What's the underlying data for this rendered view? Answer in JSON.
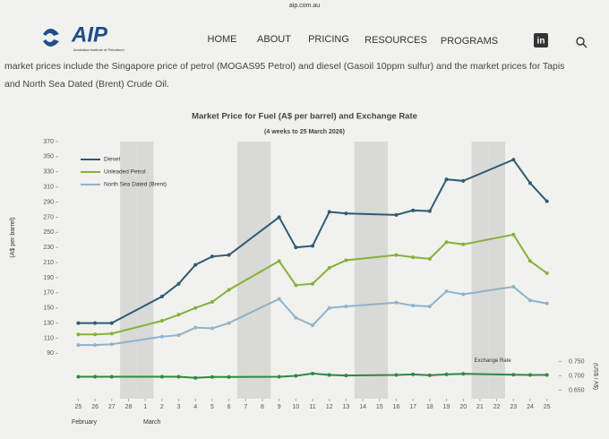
{
  "header": {
    "url": "aip.com.au",
    "logo": "AIP",
    "logo_tagline": "Australian Institute of Petroleum",
    "nav": [
      "HOME",
      "ABOUT",
      "PRICING",
      "RESOURCES",
      "PROGRAMS"
    ],
    "social": "in"
  },
  "body_text": [
    "market prices include the Singapore price of petrol (MOGAS95 Petrol) and diesel (Gasoil 10ppm sulfur) and the market prices for Tapis",
    "and North Sea Dated (Brent) Crude Oil."
  ],
  "chart_data": {
    "type": "line",
    "title": "Market Price for Fuel (A$ per barrel) and Exchange Rate",
    "subtitle": "(4 weeks to 25 March 2026)",
    "y_label": "(A$ per barrel)",
    "y2_label": "(US$ / A$)",
    "x": [
      0,
      1,
      2,
      5,
      6,
      7,
      8,
      9,
      12,
      13,
      14,
      15,
      16,
      19,
      20,
      21,
      22,
      23,
      26,
      27,
      28
    ],
    "xlim": [
      -1.2,
      28.5
    ],
    "xticks": [
      {
        "value": 0,
        "label": "25"
      },
      {
        "value": 1,
        "label": "26"
      },
      {
        "value": 2,
        "label": "27"
      },
      {
        "value": 3,
        "label": "28"
      },
      {
        "value": 4,
        "label": "1"
      },
      {
        "value": 5,
        "label": "2"
      },
      {
        "value": 6,
        "label": "3"
      },
      {
        "value": 7,
        "label": "4"
      },
      {
        "value": 8,
        "label": "5"
      },
      {
        "value": 9,
        "label": "6"
      },
      {
        "value": 10,
        "label": "7"
      },
      {
        "value": 11,
        "label": "8"
      },
      {
        "value": 12,
        "label": "9"
      },
      {
        "value": 13,
        "label": "10"
      },
      {
        "value": 14,
        "label": "11"
      },
      {
        "value": 15,
        "label": "12"
      },
      {
        "value": 16,
        "label": "13"
      },
      {
        "value": 17,
        "label": "14"
      },
      {
        "value": 18,
        "label": "15"
      },
      {
        "value": 19,
        "label": "16"
      },
      {
        "value": 20,
        "label": "17"
      },
      {
        "value": 21,
        "label": "18"
      },
      {
        "value": 22,
        "label": "19"
      },
      {
        "value": 23,
        "label": "20"
      },
      {
        "value": 24,
        "label": "21"
      },
      {
        "value": 25,
        "label": "22"
      },
      {
        "value": 26,
        "label": "23"
      },
      {
        "value": 27,
        "label": "24"
      },
      {
        "value": 28,
        "label": "25"
      }
    ],
    "x_groups": [
      "February",
      "March"
    ],
    "ylim": [
      30,
      370
    ],
    "yticks": [
      90,
      110,
      130,
      150,
      170,
      190,
      210,
      230,
      250,
      270,
      290,
      310,
      330,
      350,
      370
    ],
    "y2lim": [
      0.62,
      1.52
    ],
    "y2ticks": [
      {
        "value": 0.65,
        "label": "0.650"
      },
      {
        "value": 0.7,
        "label": "0.700"
      },
      {
        "value": 0.75,
        "label": "0.750"
      }
    ],
    "series": [
      {
        "name": "Diesel",
        "color": "#2f5b74",
        "values": [
          130,
          130,
          130,
          165,
          182,
          207,
          218,
          220,
          270,
          230,
          232,
          277,
          275,
          273,
          279,
          278,
          320,
          318,
          346,
          315,
          291
        ]
      },
      {
        "name": "Unleaded Petrol",
        "color": "#86b13a",
        "values": [
          115,
          115,
          116,
          133,
          141,
          150,
          158,
          174,
          212,
          180,
          182,
          203,
          213,
          220,
          217,
          215,
          237,
          234,
          247,
          212,
          196
        ]
      },
      {
        "name": "North Sea Dated (Brent)",
        "color": "#8fb3cc",
        "values": [
          101,
          101,
          102,
          112,
          114,
          124,
          123,
          130,
          162,
          137,
          127,
          150,
          152,
          157,
          153,
          152,
          172,
          168,
          178,
          160,
          156
        ]
      },
      {
        "name": "Exchange Rate",
        "color": "#2e8a3e",
        "axis": "y2",
        "values": [
          0.697,
          0.697,
          0.697,
          0.697,
          0.697,
          0.693,
          0.696,
          0.696,
          0.697,
          0.7,
          0.708,
          0.703,
          0.701,
          0.703,
          0.705,
          0.702,
          0.705,
          0.707,
          0.704,
          0.703,
          0.703
        ]
      }
    ]
  }
}
